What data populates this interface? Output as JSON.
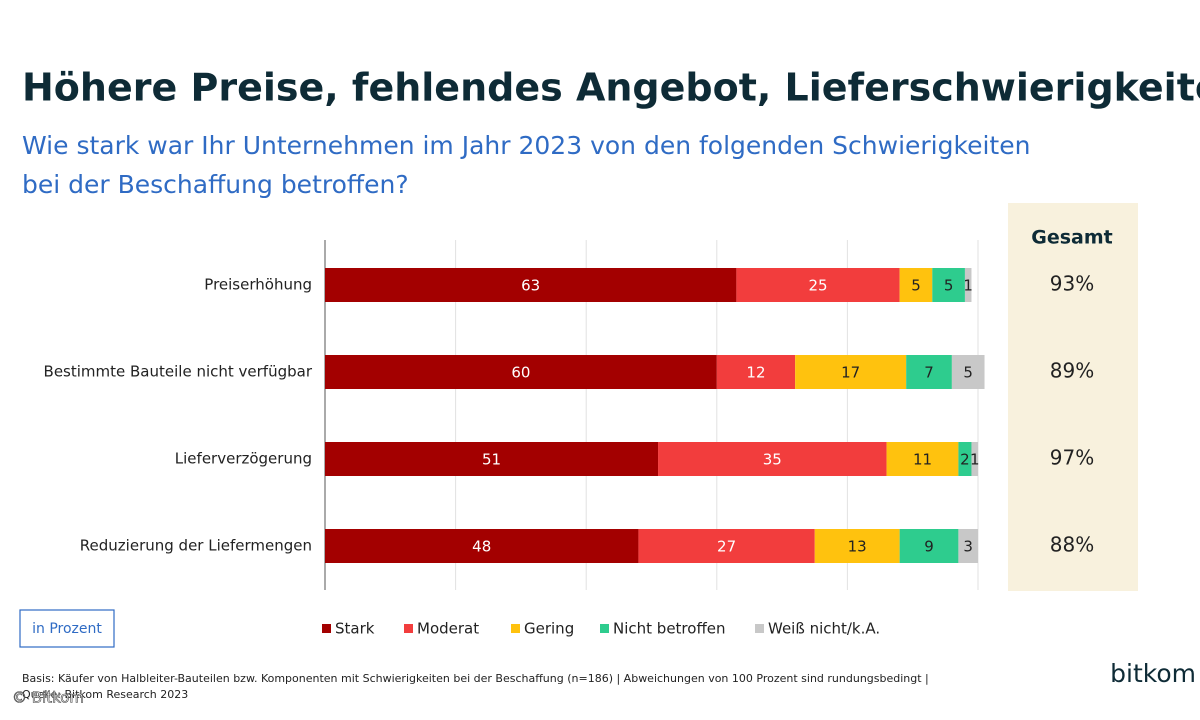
{
  "chart_data": {
    "type": "stacked_barh",
    "title": "Höhere Preise, fehlendes Angebot, Lieferschwierigkeiten",
    "subtitle": [
      "Wie stark war Ihr Unternehmen im Jahr 2023 von den folgenden Schwierigkeiten",
      "bei der Beschaffung betroffen?"
    ],
    "categories": [
      "Preiserhöhung",
      "Bestimmte Bauteile nicht verfügbar",
      "Lieferverzögerung",
      "Reduzierung der Liefermengen"
    ],
    "series": [
      {
        "name": "Stark",
        "color": "#a30000",
        "values": [
          63,
          60,
          51,
          48
        ]
      },
      {
        "name": "Moderat",
        "color": "#f23d3d",
        "values": [
          25,
          12,
          35,
          27
        ]
      },
      {
        "name": "Gering",
        "color": "#ffc20e",
        "values": [
          5,
          17,
          11,
          13
        ]
      },
      {
        "name": "Nicht betroffen",
        "color": "#2ecc8e",
        "values": [
          5,
          7,
          2,
          9
        ]
      },
      {
        "name": "Weiß nicht/k.A.",
        "color": "#c8c8c8",
        "values": [
          1,
          5,
          1,
          3
        ]
      }
    ],
    "totals": {
      "label": "Gesamt",
      "values": [
        93,
        89,
        97,
        88
      ],
      "value_labels": [
        "93%",
        "89%",
        "97%",
        "88%"
      ]
    },
    "xlim": [
      0,
      100
    ],
    "xticks": [
      0,
      20,
      40,
      60,
      80,
      100
    ],
    "grid": true,
    "unit_label": "in Prozent",
    "footnote": [
      "Basis: Käufer von Halbleiter-Bauteilen bzw. Komponenten mit Schwierigkeiten bei der Beschaffung (n=186) | Abweichungen von 100 Prozent sind rundungsbedingt |",
      "Quelle: Bitkom Research 2023"
    ],
    "logo": "bitkom",
    "watermark": "© Bitkom"
  }
}
